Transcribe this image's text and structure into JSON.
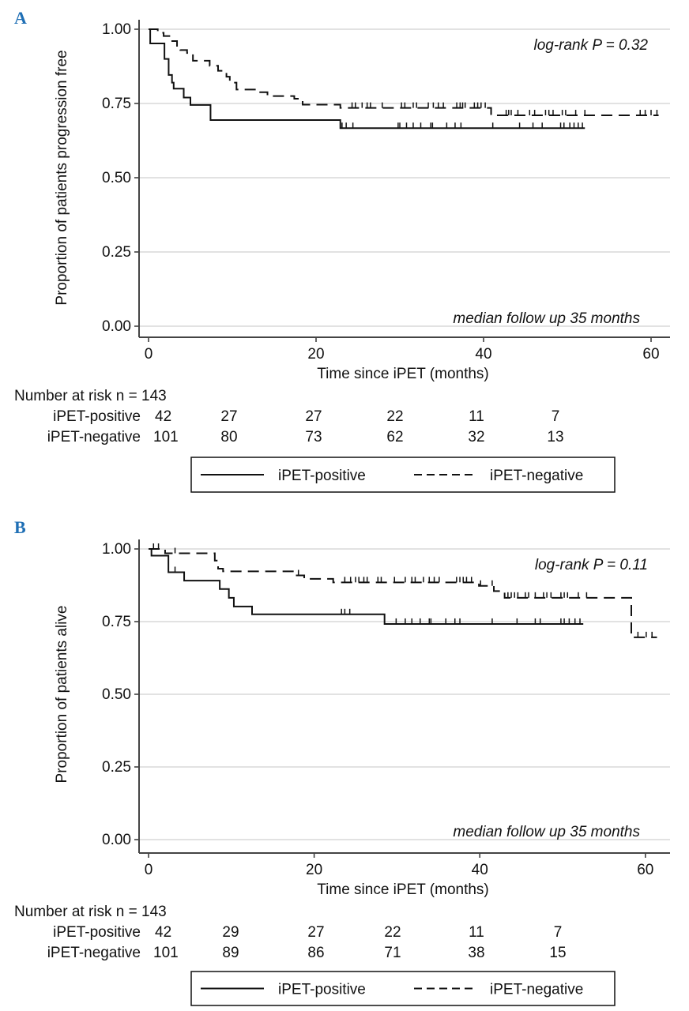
{
  "chart_data": [
    {
      "type": "line",
      "panel_label": "A",
      "ylabel": "Proportion of patients progression free",
      "xlabel": "Time since iPET (months)",
      "xticks": [
        "0",
        "20",
        "40",
        "60"
      ],
      "yticks": [
        "0.00",
        "0.25",
        "0.50",
        "0.75",
        "1.00"
      ],
      "xlim": [
        0,
        62
      ],
      "ylim": [
        0,
        1
      ],
      "grid": true,
      "annotations": {
        "logrank": "log-rank P = 0.32",
        "followup": "median follow up 35 months"
      },
      "series": [
        {
          "name": "iPET-positive",
          "style": "solid",
          "steps": [
            [
              0,
              1.0
            ],
            [
              0.2,
              0.952
            ],
            [
              1.9,
              0.9
            ],
            [
              2.4,
              0.846
            ],
            [
              2.8,
              0.82
            ],
            [
              3.0,
              0.8
            ],
            [
              4.2,
              0.77
            ],
            [
              5.0,
              0.745
            ],
            [
              7.4,
              0.694
            ],
            [
              22.9,
              0.667
            ]
          ],
          "end": 52.1,
          "censored": [
            23.1,
            23.6,
            24.4,
            29.8,
            30.0,
            30.8,
            31.6,
            32.5,
            33.7,
            33.9,
            35.6,
            36.6,
            37.3,
            41.1,
            44.3,
            45.9,
            47.0,
            49.2,
            49.6,
            50.3,
            50.8,
            51.3,
            51.8
          ]
        },
        {
          "name": "iPET-negative",
          "style": "dashed",
          "steps": [
            [
              0,
              1.0
            ],
            [
              1.1,
              0.988
            ],
            [
              1.8,
              0.977
            ],
            [
              2.7,
              0.96
            ],
            [
              3.4,
              0.94
            ],
            [
              3.8,
              0.93
            ],
            [
              4.6,
              0.92
            ],
            [
              5.3,
              0.894
            ],
            [
              7.3,
              0.877
            ],
            [
              8.3,
              0.86
            ],
            [
              9.3,
              0.84
            ],
            [
              9.7,
              0.82
            ],
            [
              10.5,
              0.797
            ],
            [
              12.7,
              0.788
            ],
            [
              14.2,
              0.775
            ],
            [
              17.4,
              0.766
            ],
            [
              18.4,
              0.746
            ],
            [
              22.9,
              0.735
            ],
            [
              40.9,
              0.71
            ]
          ],
          "end": 60.9,
          "censored": [
            24.3,
            24.7,
            25.5,
            26.1,
            26.5,
            27.9,
            30.2,
            30.6,
            31.6,
            32.0,
            33.4,
            34.0,
            34.6,
            35.2,
            36.8,
            37.2,
            37.5,
            37.8,
            38.9,
            39.3,
            39.7,
            40.2,
            42.7,
            43.0,
            43.3,
            44.1,
            45.5,
            46.1,
            47.4,
            47.8,
            48.3,
            49.4,
            49.8,
            51.0,
            52.1,
            58.7,
            59.3,
            60.0,
            60.7
          ]
        }
      ],
      "risk_table": {
        "title": "Number at risk n = 143",
        "rows": [
          {
            "label": "iPET-positive",
            "values": [
              "42",
              "27",
              "27",
              "22",
              "11",
              "7"
            ]
          },
          {
            "label": "iPET-negative",
            "values": [
              "101",
              "80",
              "73",
              "62",
              "32",
              "13"
            ]
          }
        ]
      },
      "legend": {
        "placement": "bottom",
        "items": [
          "iPET-positive",
          "iPET-negative"
        ]
      }
    },
    {
      "type": "line",
      "panel_label": "B",
      "ylabel": "Proportion of patients alive",
      "xlabel": "Time since iPET (months)",
      "xticks": [
        "0",
        "20",
        "40",
        "60"
      ],
      "yticks": [
        "0.00",
        "0.25",
        "0.50",
        "0.75",
        "1.00"
      ],
      "xlim": [
        0,
        62
      ],
      "ylim": [
        0,
        1
      ],
      "grid": true,
      "annotations": {
        "logrank": "log-rank P = 0.11",
        "followup": "median follow up 35 months"
      },
      "series": [
        {
          "name": "iPET-positive",
          "style": "solid",
          "steps": [
            [
              0,
              1.0
            ],
            [
              0.35,
              0.977
            ],
            [
              2.4,
              0.92
            ],
            [
              4.3,
              0.891
            ],
            [
              8.6,
              0.862
            ],
            [
              9.7,
              0.832
            ],
            [
              10.3,
              0.802
            ],
            [
              12.5,
              0.775
            ],
            [
              28.5,
              0.742
            ]
          ],
          "end": 52.5,
          "censored": [
            3.2,
            23.3,
            23.7,
            24.3,
            29.9,
            31.0,
            31.8,
            32.8,
            33.9,
            34.1,
            35.9,
            37.0,
            37.6,
            41.5,
            44.5,
            46.7,
            47.3,
            49.8,
            50.2,
            50.8,
            51.5,
            52.1
          ]
        },
        {
          "name": "iPET-negative",
          "style": "dashed",
          "steps": [
            [
              0,
              1.0
            ],
            [
              2.0,
              0.985
            ],
            [
              8.0,
              0.96
            ],
            [
              8.4,
              0.932
            ],
            [
              9.0,
              0.923
            ],
            [
              17.7,
              0.909
            ],
            [
              18.8,
              0.897
            ],
            [
              22.3,
              0.885
            ],
            [
              39.9,
              0.873
            ],
            [
              41.7,
              0.855
            ],
            [
              43.0,
              0.832
            ],
            [
              58.3,
              0.696
            ]
          ],
          "end": 61.4,
          "censored": [
            0.6,
            1.2,
            3.2,
            18.1,
            23.7,
            24.4,
            25.0,
            25.4,
            26.0,
            26.4,
            27.7,
            28.1,
            29.7,
            31.0,
            31.8,
            32.2,
            33.2,
            33.9,
            34.5,
            35.1,
            37.2,
            37.6,
            38.0,
            38.4,
            39.0,
            40.1,
            41.5,
            43.4,
            43.8,
            44.2,
            44.6,
            45.5,
            45.9,
            46.7,
            47.7,
            48.1,
            48.6,
            49.8,
            50.2,
            50.6,
            51.9,
            52.9,
            59.1,
            60.1,
            60.8
          ]
        }
      ],
      "risk_table": {
        "title": "Number at risk n = 143",
        "rows": [
          {
            "label": "iPET-positive",
            "values": [
              "42",
              "29",
              "27",
              "22",
              "11",
              "7"
            ]
          },
          {
            "label": "iPET-negative",
            "values": [
              "101",
              "89",
              "86",
              "71",
              "38",
              "15"
            ]
          }
        ]
      },
      "legend": {
        "placement": "bottom",
        "items": [
          "iPET-positive",
          "iPET-negative"
        ]
      }
    }
  ],
  "colors": {
    "panel_label": "#1f6fb5",
    "line": "#111111",
    "grid": "#d9d9d9"
  }
}
